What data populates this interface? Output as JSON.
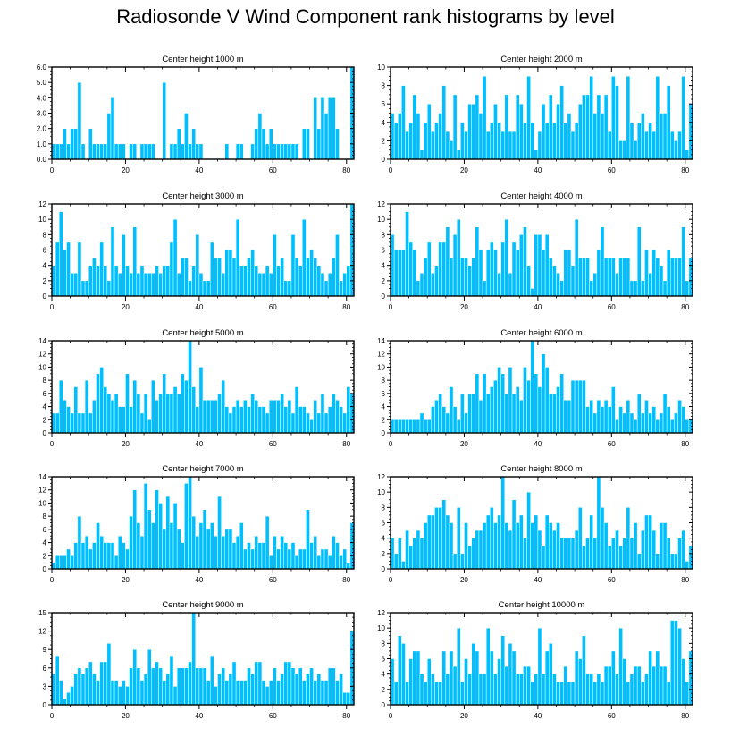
{
  "title": "Radiosonde V Wind Component rank histograms by level",
  "colors": {
    "bar": "#00bfff",
    "bar_edge": "#ffffff",
    "axis": "#000000"
  },
  "chart_data": [
    {
      "type": "bar",
      "title": "Center height 1000 m",
      "xlim": [
        0,
        82
      ],
      "ylim": [
        0,
        6
      ],
      "xticks": [
        0,
        20,
        40,
        60,
        80
      ],
      "yticks": [
        0,
        1,
        2,
        3,
        4,
        5,
        6
      ],
      "ytick_labels": [
        "0.0",
        "1.0",
        "2.0",
        "3.0",
        "4.0",
        "5.0",
        "6.0"
      ],
      "values": [
        1,
        1,
        1,
        2,
        1,
        2,
        2,
        5,
        1,
        0,
        2,
        1,
        1,
        1,
        1,
        3,
        4,
        1,
        1,
        1,
        0,
        1,
        1,
        0,
        1,
        1,
        1,
        1,
        0,
        0,
        5,
        0,
        1,
        1,
        2,
        1,
        3,
        1,
        2,
        1,
        1,
        0,
        0,
        0,
        0,
        0,
        0,
        1,
        0,
        0,
        1,
        1,
        0,
        0,
        1,
        2,
        3,
        2,
        1,
        2,
        1,
        1,
        1,
        1,
        1,
        1,
        1,
        0,
        2,
        2,
        0,
        4,
        2,
        4,
        3,
        4,
        4,
        2,
        0,
        0,
        0,
        6
      ]
    },
    {
      "type": "bar",
      "title": "Center height 2000 m",
      "xlim": [
        0,
        82
      ],
      "ylim": [
        0,
        10
      ],
      "xticks": [
        0,
        20,
        40,
        60,
        80
      ],
      "yticks": [
        0,
        2,
        4,
        6,
        8,
        10
      ],
      "ytick_labels": [
        "0",
        "2",
        "4",
        "6",
        "8",
        "10"
      ],
      "values": [
        5,
        4,
        5,
        8,
        3,
        4,
        7,
        5,
        1,
        4,
        6,
        3,
        4,
        5,
        8,
        3,
        2,
        7,
        1,
        4,
        3,
        6,
        6,
        7,
        5,
        9,
        3,
        4,
        6,
        4,
        3,
        7,
        3,
        3,
        7,
        6,
        4,
        9,
        4,
        1,
        3,
        6,
        4,
        7,
        4,
        6,
        8,
        4,
        5,
        3,
        4,
        6,
        7,
        7,
        9,
        5,
        7,
        5,
        7,
        3,
        9,
        8,
        2,
        2,
        9,
        4,
        2,
        4,
        5,
        3,
        4,
        3,
        9,
        5,
        5,
        8,
        3,
        2,
        3,
        9,
        1,
        6
      ]
    },
    {
      "type": "bar",
      "title": "Center height 3000 m",
      "xlim": [
        0,
        82
      ],
      "ylim": [
        0,
        12
      ],
      "xticks": [
        0,
        20,
        40,
        60,
        80
      ],
      "yticks": [
        0,
        2,
        4,
        6,
        8,
        10,
        12
      ],
      "ytick_labels": [
        "0",
        "2",
        "4",
        "6",
        "8",
        "10",
        "12"
      ],
      "values": [
        4,
        7,
        11,
        6,
        7,
        3,
        3,
        7,
        2,
        2,
        4,
        5,
        4,
        7,
        4,
        2,
        9,
        4,
        3,
        8,
        4,
        3,
        9,
        3,
        4,
        3,
        3,
        3,
        4,
        3,
        4,
        4,
        7,
        10,
        3,
        5,
        5,
        2,
        4,
        8,
        3,
        2,
        2,
        7,
        5,
        5,
        3,
        6,
        6,
        5,
        10,
        4,
        4,
        5,
        6,
        4,
        3,
        3,
        4,
        3,
        8,
        4,
        5,
        2,
        2,
        8,
        5,
        4,
        10,
        5,
        6,
        5,
        4,
        3,
        2,
        3,
        5,
        8,
        2,
        3,
        4,
        12
      ]
    },
    {
      "type": "bar",
      "title": "Center height 4000 m",
      "xlim": [
        0,
        82
      ],
      "ylim": [
        0,
        12
      ],
      "xticks": [
        0,
        20,
        40,
        60,
        80
      ],
      "yticks": [
        0,
        2,
        4,
        6,
        8,
        10,
        12
      ],
      "ytick_labels": [
        "0",
        "2",
        "4",
        "6",
        "8",
        "10",
        "12"
      ],
      "values": [
        8,
        6,
        6,
        6,
        11,
        7,
        6,
        2,
        3,
        5,
        7,
        3,
        4,
        7,
        7,
        9,
        5,
        8,
        10,
        5,
        5,
        4,
        5,
        9,
        6,
        2,
        6,
        7,
        6,
        3,
        7,
        10,
        3,
        7,
        6,
        8,
        9,
        4,
        1,
        8,
        8,
        6,
        8,
        5,
        4,
        3,
        2,
        6,
        6,
        4,
        10,
        5,
        5,
        5,
        2,
        3,
        6,
        9,
        5,
        5,
        5,
        3,
        5,
        5,
        5,
        2,
        2,
        9,
        2,
        6,
        3,
        6,
        5,
        4,
        2,
        6,
        5,
        5,
        5,
        9,
        2,
        5
      ]
    },
    {
      "type": "bar",
      "title": "Center height 5000 m",
      "xlim": [
        0,
        82
      ],
      "ylim": [
        0,
        14
      ],
      "xticks": [
        0,
        20,
        40,
        60,
        80
      ],
      "yticks": [
        0,
        2,
        4,
        6,
        8,
        10,
        12,
        14
      ],
      "ytick_labels": [
        "0",
        "2",
        "4",
        "6",
        "8",
        "10",
        "12",
        "14"
      ],
      "values": [
        3,
        3,
        8,
        5,
        4,
        3,
        7,
        3,
        3,
        8,
        3,
        5,
        9,
        10,
        7,
        6,
        5,
        6,
        4,
        4,
        9,
        4,
        8,
        6,
        3,
        6,
        2,
        8,
        5,
        6,
        9,
        6,
        6,
        7,
        6,
        9,
        8,
        14,
        7,
        4,
        10,
        5,
        5,
        5,
        5,
        6,
        8,
        4,
        3,
        4,
        5,
        4,
        5,
        4,
        6,
        5,
        4,
        4,
        3,
        5,
        5,
        5,
        6,
        4,
        5,
        3,
        7,
        4,
        4,
        3,
        2,
        5,
        3,
        6,
        3,
        4,
        6,
        5,
        4,
        3,
        7,
        6
      ]
    },
    {
      "type": "bar",
      "title": "Center height 6000 m",
      "xlim": [
        0,
        82
      ],
      "ylim": [
        0,
        14
      ],
      "xticks": [
        0,
        20,
        40,
        60,
        80
      ],
      "yticks": [
        0,
        2,
        4,
        6,
        8,
        10,
        12,
        14
      ],
      "ytick_labels": [
        "0",
        "2",
        "4",
        "6",
        "8",
        "10",
        "12",
        "14"
      ],
      "values": [
        2,
        2,
        2,
        2,
        2,
        2,
        2,
        2,
        3,
        2,
        2,
        4,
        5,
        6,
        4,
        3,
        7,
        4,
        2,
        6,
        3,
        6,
        6,
        9,
        5,
        9,
        6,
        7,
        8,
        10,
        9,
        6,
        10,
        6,
        7,
        5,
        10,
        8,
        14,
        9,
        7,
        12,
        10,
        6,
        6,
        7,
        9,
        5,
        5,
        8,
        8,
        8,
        8,
        4,
        5,
        3,
        5,
        4,
        5,
        4,
        7,
        2,
        4,
        3,
        5,
        3,
        2,
        6,
        3,
        5,
        3,
        4,
        2,
        3,
        6,
        4,
        2,
        3,
        5,
        4,
        2,
        2
      ]
    },
    {
      "type": "bar",
      "title": "Center height 7000 m",
      "xlim": [
        0,
        82
      ],
      "ylim": [
        0,
        14
      ],
      "xticks": [
        0,
        20,
        40,
        60,
        80
      ],
      "yticks": [
        0,
        2,
        4,
        6,
        8,
        10,
        12,
        14
      ],
      "ytick_labels": [
        "0",
        "2",
        "4",
        "6",
        "8",
        "10",
        "12",
        "14"
      ],
      "values": [
        1,
        2,
        2,
        2,
        3,
        2,
        4,
        8,
        4,
        5,
        3,
        4,
        7,
        5,
        4,
        4,
        4,
        2,
        5,
        4,
        3,
        8,
        12,
        7,
        5,
        13,
        9,
        7,
        12,
        10,
        6,
        11,
        7,
        10,
        6,
        4,
        13,
        14,
        8,
        5,
        7,
        9,
        6,
        7,
        5,
        11,
        5,
        6,
        6,
        4,
        5,
        7,
        3,
        4,
        3,
        5,
        4,
        4,
        8,
        2,
        5,
        3,
        5,
        4,
        3,
        4,
        2,
        3,
        3,
        9,
        4,
        5,
        2,
        3,
        3,
        2,
        5,
        4,
        2,
        3,
        1,
        7
      ]
    },
    {
      "type": "bar",
      "title": "Center height 8000 m",
      "xlim": [
        0,
        82
      ],
      "ylim": [
        0,
        12
      ],
      "xticks": [
        0,
        20,
        40,
        60,
        80
      ],
      "yticks": [
        0,
        2,
        4,
        6,
        8,
        10,
        12
      ],
      "ytick_labels": [
        "0",
        "2",
        "4",
        "6",
        "8",
        "10",
        "12"
      ],
      "values": [
        4,
        2,
        4,
        1,
        5,
        3,
        4,
        5,
        4,
        6,
        7,
        7,
        8,
        8,
        9,
        7,
        6,
        2,
        8,
        2,
        6,
        3,
        4,
        5,
        5,
        6,
        7,
        8,
        6,
        7,
        12,
        6,
        5,
        9,
        6,
        7,
        4,
        10,
        6,
        7,
        5,
        3,
        7,
        6,
        5,
        6,
        4,
        4,
        4,
        4,
        5,
        8,
        3,
        4,
        7,
        4,
        12,
        8,
        6,
        3,
        4,
        5,
        3,
        4,
        8,
        4,
        6,
        2,
        5,
        7,
        7,
        5,
        2,
        6,
        6,
        4,
        2,
        2,
        4,
        5,
        1,
        3
      ]
    },
    {
      "type": "bar",
      "title": "Center height 9000 m",
      "xlim": [
        0,
        82
      ],
      "ylim": [
        0,
        15
      ],
      "xticks": [
        0,
        20,
        40,
        60,
        80
      ],
      "yticks": [
        0,
        3,
        6,
        9,
        12,
        15
      ],
      "ytick_labels": [
        "0",
        "3",
        "6",
        "9",
        "12",
        "15"
      ],
      "values": [
        5,
        8,
        4,
        1,
        2,
        3,
        5,
        6,
        5,
        6,
        7,
        5,
        4,
        7,
        7,
        10,
        4,
        4,
        3,
        4,
        3,
        6,
        9,
        6,
        4,
        5,
        9,
        6,
        7,
        6,
        4,
        5,
        8,
        3,
        6,
        6,
        6,
        7,
        15,
        6,
        6,
        6,
        4,
        8,
        3,
        5,
        6,
        4,
        5,
        7,
        4,
        4,
        4,
        6,
        5,
        7,
        7,
        4,
        3,
        4,
        6,
        4,
        5,
        7,
        7,
        6,
        5,
        6,
        4,
        5,
        6,
        4,
        5,
        4,
        4,
        6,
        6,
        4,
        5,
        2,
        2,
        12
      ]
    },
    {
      "type": "bar",
      "title": "Center height 10000 m",
      "xlim": [
        0,
        82
      ],
      "ylim": [
        0,
        12
      ],
      "xticks": [
        0,
        20,
        40,
        60,
        80
      ],
      "yticks": [
        0,
        2,
        4,
        6,
        8,
        10,
        12
      ],
      "ytick_labels": [
        "0",
        "2",
        "4",
        "6",
        "8",
        "10",
        "12"
      ],
      "values": [
        6,
        3,
        9,
        8,
        3,
        6,
        7,
        7,
        4,
        3,
        6,
        4,
        3,
        3,
        7,
        4,
        7,
        5,
        10,
        3,
        6,
        4,
        8,
        7,
        4,
        4,
        10,
        7,
        4,
        6,
        9,
        5,
        8,
        7,
        4,
        4,
        5,
        5,
        3,
        4,
        10,
        4,
        7,
        8,
        4,
        3,
        3,
        5,
        3,
        3,
        7,
        6,
        9,
        4,
        4,
        3,
        4,
        3,
        5,
        5,
        7,
        4,
        10,
        6,
        3,
        4,
        5,
        5,
        3,
        4,
        7,
        5,
        7,
        5,
        5,
        3,
        11,
        11,
        10,
        6,
        3,
        7
      ]
    }
  ]
}
